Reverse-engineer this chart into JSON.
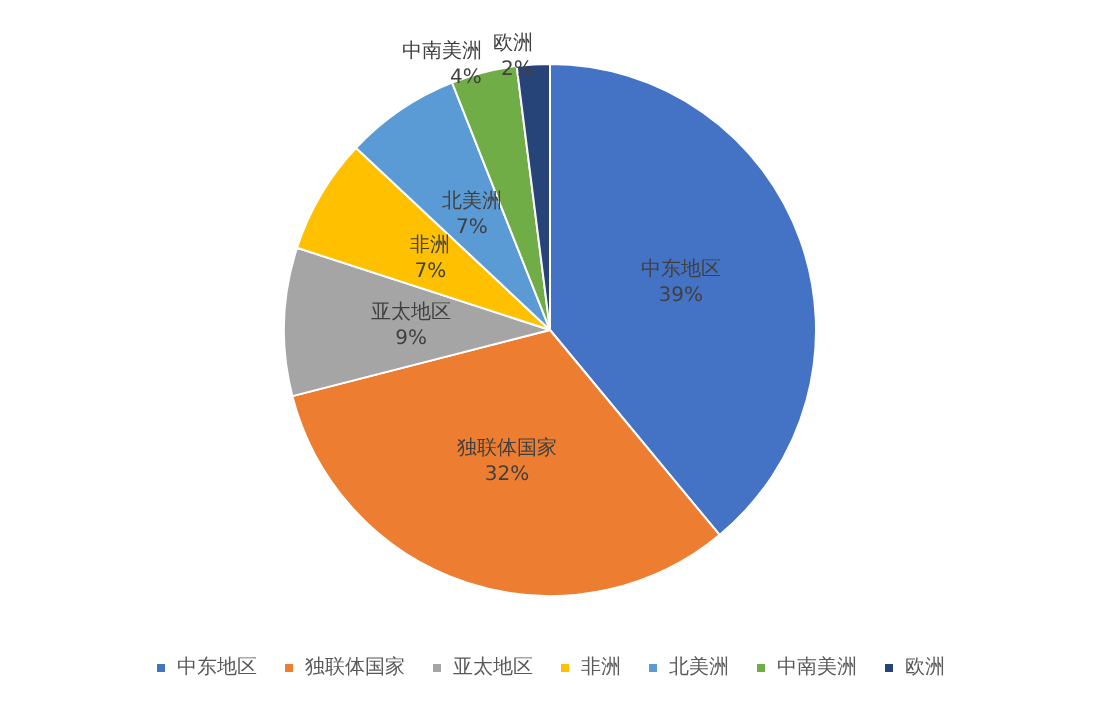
{
  "chart_data": {
    "type": "pie",
    "categories": [
      "中东地区",
      "独联体国家",
      "亚太地区",
      "非洲",
      "北美洲",
      "中南美洲",
      "欧洲"
    ],
    "values": [
      39,
      32,
      9,
      7,
      7,
      4,
      2
    ],
    "value_labels": [
      "39%",
      "32%",
      "9%",
      "7%",
      "7%",
      "4%",
      "2%"
    ],
    "colors": [
      "#4472c4",
      "#ed7d31",
      "#a5a5a5",
      "#ffc000",
      "#5b9bd5",
      "#70ad47",
      "#264478"
    ],
    "legend": "bottom"
  }
}
